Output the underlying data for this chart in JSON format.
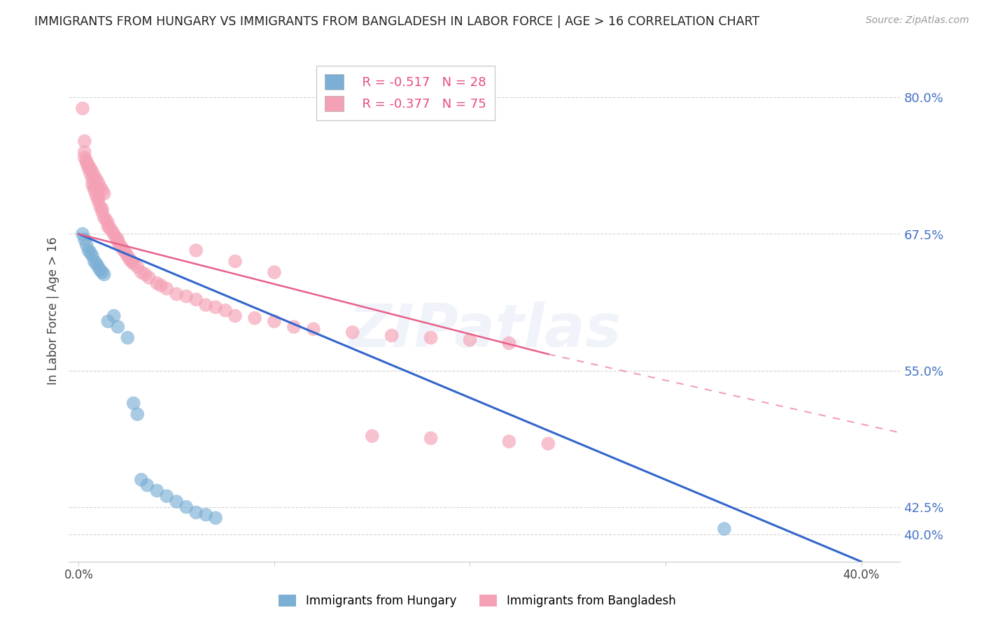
{
  "title": "IMMIGRANTS FROM HUNGARY VS IMMIGRANTS FROM BANGLADESH IN LABOR FORCE | AGE > 16 CORRELATION CHART",
  "source": "Source: ZipAtlas.com",
  "ylabel": "In Labor Force | Age > 16",
  "right_yticks": [
    0.4,
    0.425,
    0.55,
    0.675,
    0.8
  ],
  "right_yticklabels": [
    "40.0%",
    "42.5%",
    "55.0%",
    "67.5%",
    "80.0%"
  ],
  "xlim": [
    -0.005,
    0.42
  ],
  "ylim": [
    0.375,
    0.835
  ],
  "xticks": [
    0.0,
    0.1,
    0.2,
    0.3,
    0.4
  ],
  "xticklabels": [
    "0.0%",
    "",
    "",
    "",
    "40.0%"
  ],
  "hungary_color": "#7bafd4",
  "bangladesh_color": "#f4a0b5",
  "hungary_line_color": "#3366cc",
  "bangladesh_line_color": "#e8608a",
  "hungary_R": -0.517,
  "hungary_N": 28,
  "bangladesh_R": -0.377,
  "bangladesh_N": 75,
  "hungary_label": "Immigrants from Hungary",
  "bangladesh_label": "Immigrants from Bangladesh",
  "watermark": "ZIPatlas",
  "background_color": "#ffffff",
  "grid_color": "#cccccc",
  "hungary_scatter": [
    [
      0.002,
      0.675
    ],
    [
      0.003,
      0.67
    ],
    [
      0.004,
      0.665
    ],
    [
      0.005,
      0.66
    ],
    [
      0.006,
      0.658
    ],
    [
      0.007,
      0.655
    ],
    [
      0.008,
      0.65
    ],
    [
      0.009,
      0.648
    ],
    [
      0.01,
      0.645
    ],
    [
      0.011,
      0.642
    ],
    [
      0.012,
      0.64
    ],
    [
      0.013,
      0.638
    ],
    [
      0.015,
      0.595
    ],
    [
      0.018,
      0.6
    ],
    [
      0.02,
      0.59
    ],
    [
      0.025,
      0.58
    ],
    [
      0.028,
      0.52
    ],
    [
      0.03,
      0.51
    ],
    [
      0.032,
      0.45
    ],
    [
      0.035,
      0.445
    ],
    [
      0.04,
      0.44
    ],
    [
      0.045,
      0.435
    ],
    [
      0.05,
      0.43
    ],
    [
      0.055,
      0.425
    ],
    [
      0.06,
      0.42
    ],
    [
      0.065,
      0.418
    ],
    [
      0.07,
      0.415
    ],
    [
      0.33,
      0.405
    ]
  ],
  "bangladesh_scatter": [
    [
      0.002,
      0.79
    ],
    [
      0.003,
      0.76
    ],
    [
      0.004,
      0.74
    ],
    [
      0.005,
      0.735
    ],
    [
      0.006,
      0.73
    ],
    [
      0.007,
      0.725
    ],
    [
      0.007,
      0.72
    ],
    [
      0.008,
      0.718
    ],
    [
      0.008,
      0.715
    ],
    [
      0.009,
      0.71
    ],
    [
      0.01,
      0.708
    ],
    [
      0.01,
      0.705
    ],
    [
      0.011,
      0.7
    ],
    [
      0.012,
      0.698
    ],
    [
      0.012,
      0.695
    ],
    [
      0.013,
      0.69
    ],
    [
      0.014,
      0.688
    ],
    [
      0.015,
      0.685
    ],
    [
      0.015,
      0.682
    ],
    [
      0.016,
      0.68
    ],
    [
      0.017,
      0.678
    ],
    [
      0.018,
      0.675
    ],
    [
      0.019,
      0.672
    ],
    [
      0.02,
      0.67
    ],
    [
      0.02,
      0.668
    ],
    [
      0.021,
      0.665
    ],
    [
      0.022,
      0.663
    ],
    [
      0.023,
      0.66
    ],
    [
      0.024,
      0.658
    ],
    [
      0.025,
      0.655
    ],
    [
      0.026,
      0.652
    ],
    [
      0.027,
      0.65
    ],
    [
      0.028,
      0.648
    ],
    [
      0.03,
      0.645
    ],
    [
      0.032,
      0.64
    ],
    [
      0.034,
      0.638
    ],
    [
      0.036,
      0.635
    ],
    [
      0.04,
      0.63
    ],
    [
      0.042,
      0.628
    ],
    [
      0.045,
      0.625
    ],
    [
      0.05,
      0.62
    ],
    [
      0.055,
      0.618
    ],
    [
      0.06,
      0.615
    ],
    [
      0.065,
      0.61
    ],
    [
      0.07,
      0.608
    ],
    [
      0.075,
      0.605
    ],
    [
      0.08,
      0.6
    ],
    [
      0.09,
      0.598
    ],
    [
      0.1,
      0.595
    ],
    [
      0.11,
      0.59
    ],
    [
      0.12,
      0.588
    ],
    [
      0.14,
      0.585
    ],
    [
      0.16,
      0.582
    ],
    [
      0.18,
      0.58
    ],
    [
      0.2,
      0.578
    ],
    [
      0.22,
      0.575
    ],
    [
      0.003,
      0.75
    ],
    [
      0.003,
      0.745
    ],
    [
      0.004,
      0.742
    ],
    [
      0.005,
      0.738
    ],
    [
      0.006,
      0.735
    ],
    [
      0.007,
      0.732
    ],
    [
      0.008,
      0.728
    ],
    [
      0.009,
      0.725
    ],
    [
      0.01,
      0.722
    ],
    [
      0.011,
      0.718
    ],
    [
      0.012,
      0.715
    ],
    [
      0.013,
      0.712
    ],
    [
      0.06,
      0.66
    ],
    [
      0.08,
      0.65
    ],
    [
      0.1,
      0.64
    ],
    [
      0.15,
      0.49
    ],
    [
      0.18,
      0.488
    ],
    [
      0.22,
      0.485
    ],
    [
      0.24,
      0.483
    ]
  ]
}
